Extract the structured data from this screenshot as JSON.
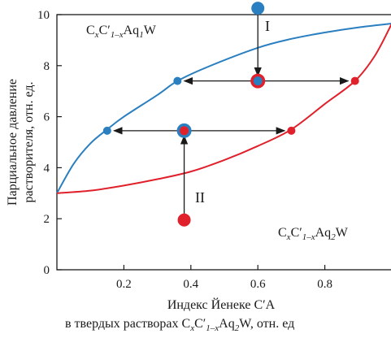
{
  "chart_data": {
    "type": "line",
    "xlim": [
      0,
      1
    ],
    "ylim": [
      0,
      10
    ],
    "x_ticks": [
      {
        "value": 0.2,
        "label": "0.2"
      },
      {
        "value": 0.4,
        "label": "0.4"
      },
      {
        "value": 0.6,
        "label": "0.6"
      },
      {
        "value": 0.8,
        "label": "0.8"
      }
    ],
    "y_ticks": [
      {
        "value": 0,
        "label": "0"
      },
      {
        "value": 2,
        "label": "2"
      },
      {
        "value": 4,
        "label": "4"
      },
      {
        "value": 6,
        "label": "6"
      },
      {
        "value": 8,
        "label": "8"
      },
      {
        "value": 10,
        "label": "10"
      }
    ],
    "ylabel_line1": "Парциальное давление",
    "ylabel_line2": "растворителя, отн. ед.",
    "xlabel_line1": "Индекс Йенеке C′A",
    "xlabel_line2_pre": "в твердых растворах C",
    "xlabel_line2_mid": "C′",
    "xlabel_line2_a": "Aq",
    "xlabel_line2_post": "W, отн. ед",
    "label_top": {
      "c": "C",
      "cp": "C′",
      "a": "Aq",
      "w": "W"
    },
    "label_bottom": {
      "c": "C",
      "cp": "C′",
      "a": "Aq",
      "w": "W"
    },
    "sub_x": "x",
    "sub_1mx": "1–x",
    "sub_1": "1",
    "sub_2": "2",
    "roman_I": "I",
    "roman_II": "II",
    "series": [
      {
        "color": "#2a7fc0",
        "x": [
          0,
          0.05,
          0.1,
          0.15,
          0.2,
          0.3,
          0.36,
          0.45,
          0.6,
          0.7,
          0.8,
          0.9,
          1.0
        ],
        "y": [
          3.0,
          4.15,
          4.95,
          5.5,
          6.0,
          6.85,
          7.4,
          7.95,
          8.7,
          9.05,
          9.3,
          9.5,
          9.65
        ]
      },
      {
        "color": "#e0202a",
        "x": [
          0,
          0.1,
          0.2,
          0.3,
          0.4,
          0.5,
          0.6,
          0.7,
          0.8,
          0.89,
          0.95,
          1.0
        ],
        "y": [
          3.0,
          3.1,
          3.3,
          3.55,
          3.85,
          4.3,
          4.85,
          5.5,
          6.5,
          7.4,
          8.4,
          9.65
        ]
      }
    ],
    "points": [
      {
        "x": 0.6,
        "y": 10.25,
        "color": "#2a7fc0",
        "size": "large"
      },
      {
        "x": 0.6,
        "y": 7.4,
        "color": "#2a7fc0",
        "ring": "#e0202a",
        "size": "large"
      },
      {
        "x": 0.36,
        "y": 7.4,
        "color": "#2a7fc0",
        "size": "small"
      },
      {
        "x": 0.89,
        "y": 7.4,
        "color": "#e0202a",
        "size": "small"
      },
      {
        "x": 0.38,
        "y": 5.45,
        "color": "#e0202a",
        "ring": "#2a7fc0",
        "size": "large"
      },
      {
        "x": 0.15,
        "y": 5.45,
        "color": "#2a7fc0",
        "size": "small"
      },
      {
        "x": 0.7,
        "y": 5.45,
        "color": "#e0202a",
        "size": "small"
      },
      {
        "x": 0.38,
        "y": 1.95,
        "color": "#e0202a",
        "size": "large"
      }
    ],
    "arrows": [
      {
        "x1": 0.6,
        "y1": 10.0,
        "x2": 0.6,
        "y2": 7.6
      },
      {
        "x1": 0.6,
        "y1": 7.4,
        "x2": 0.38,
        "y2": 7.4
      },
      {
        "x1": 0.6,
        "y1": 7.4,
        "x2": 0.87,
        "y2": 7.4
      },
      {
        "x1": 0.38,
        "y1": 2.2,
        "x2": 0.38,
        "y2": 5.25
      },
      {
        "x1": 0.38,
        "y1": 5.45,
        "x2": 0.17,
        "y2": 5.45
      },
      {
        "x1": 0.38,
        "y1": 5.45,
        "x2": 0.68,
        "y2": 5.45
      }
    ]
  }
}
